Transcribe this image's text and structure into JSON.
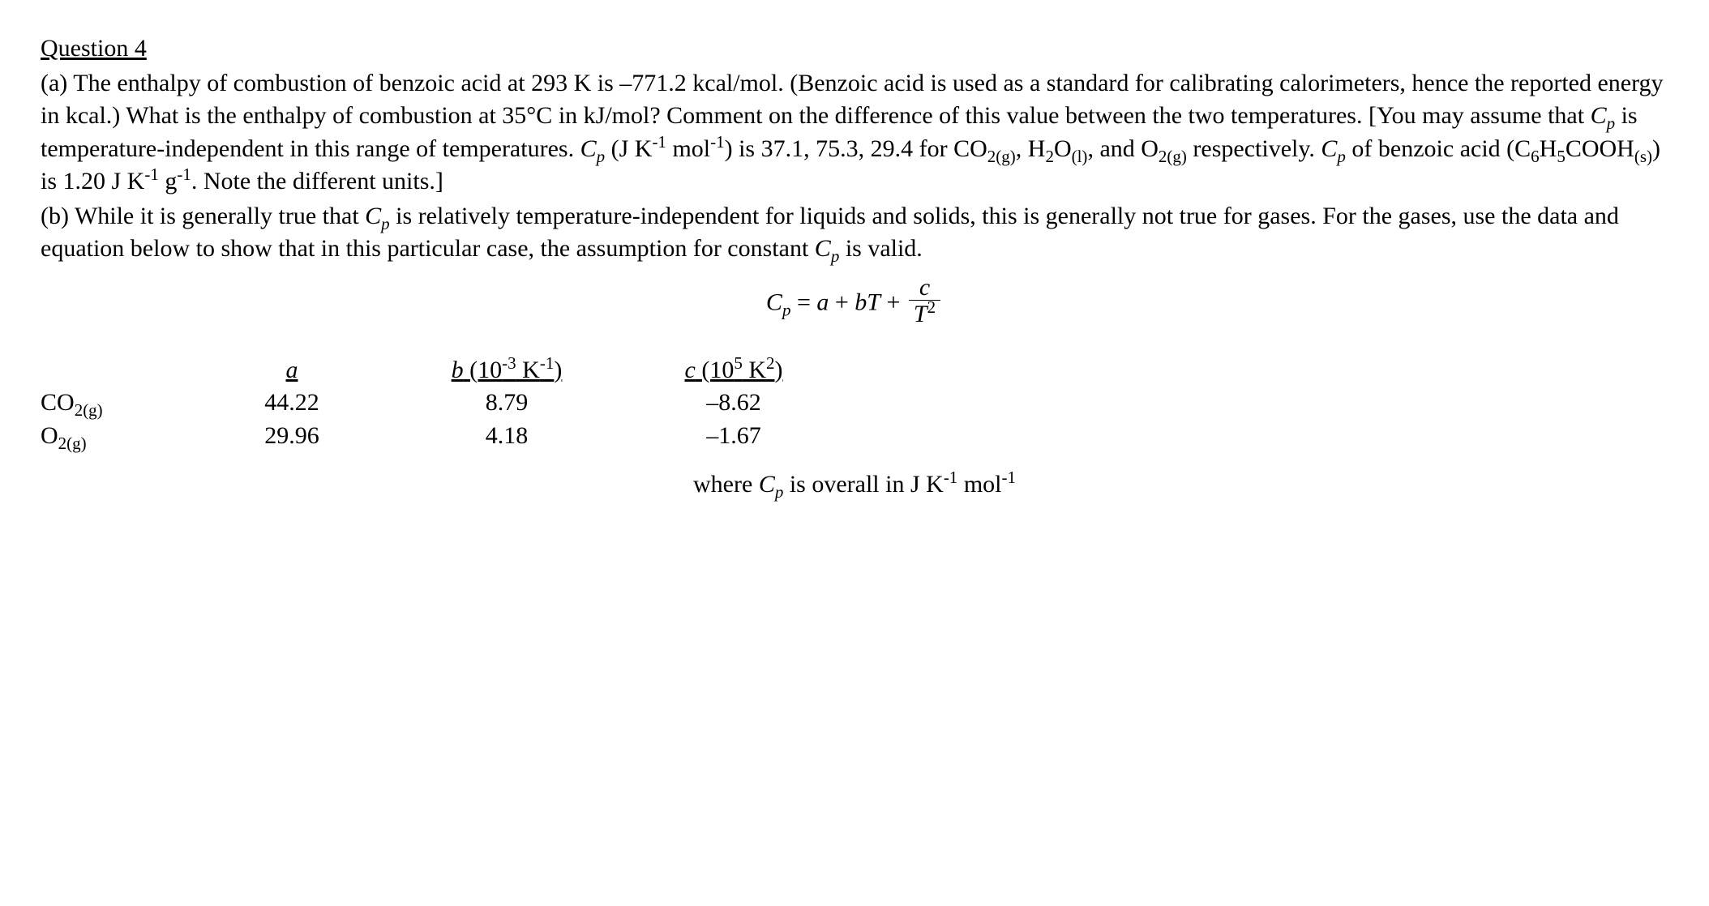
{
  "heading": "Question 4",
  "part_a": {
    "prefix": "(a) The enthalpy of combustion of benzoic acid at 293 K is ",
    "value1": "–771.2 kcal/mol",
    "after1": ". (Benzoic acid is used as a standard for calibrating calorimeters, hence the reported energy in kcal.) What is the enthalpy of combustion at 35°C in kJ/mol? Comment on the difference of this value between the two temperatures. [You may assume that ",
    "cp1": "C",
    "cp1_sub": "p",
    "after_cp1": " is temperature-independent in this range of temperatures. ",
    "cp2": "C",
    "cp2_sub": "p",
    "units_phrase": "  (J K",
    "units_sup1": "-1",
    "units_mid": " mol",
    "units_sup2": "-1",
    "units_end": ") is 37.1, 75.3, 29.4 for CO",
    "co2_sub": "2(g)",
    "sep1": ", H",
    "h2o_sub1": "2",
    "h2o_mid": "O",
    "h2o_sub2": "(l)",
    "sep2": ", and O",
    "o2_sub": "2(g)",
    "after_species": " respectively. ",
    "cp3": "C",
    "cp3_sub": "p",
    "benz_intro": " of benzoic acid (C",
    "benz_sub1": "6",
    "benz_mid1": "H",
    "benz_sub2": "5",
    "benz_mid2": "COOH",
    "benz_sub3": "(s)",
    "benz_after": ") is 1.20 J K",
    "benz_sup1": "-1",
    "benz_g": " g",
    "benz_sup2": "-1",
    "benz_close": ". Note the different units.]"
  },
  "part_b": {
    "prefix": "(b) While it is generally true that ",
    "cp": "C",
    "cp_sub": "p",
    "mid1": " is relatively temperature-independent for liquids and solids, this is generally not true for gases. For the gases, use the data and equation below to show that in this particular case, the assumption for constant ",
    "cp2": "C",
    "cp2_sub": "p",
    "end": " is valid."
  },
  "equation": {
    "lhs": "C",
    "lhs_sub": "p",
    "eq": " = ",
    "a": "a",
    "plus1": " + ",
    "b": "bT",
    "plus2": " + ",
    "frac_num": "c",
    "frac_den_base": "T",
    "frac_den_sup": "2"
  },
  "table": {
    "headers": {
      "a": "a",
      "b_pre": "b",
      "b_paren_open": " (10",
      "b_sup": "-3",
      "b_k": " K",
      "b_sup2": "-1",
      "b_close": ")",
      "c_pre": "c",
      "c_paren_open": " (10",
      "c_sup": "5",
      "c_k": " K",
      "c_sup2": "2",
      "c_close": ")"
    },
    "rows": [
      {
        "gas_base": "CO",
        "gas_sub": "2(g)",
        "a": "44.22",
        "b": "8.79",
        "c": "–8.62"
      },
      {
        "gas_base": "O",
        "gas_sub": "2(g)",
        "a": "29.96",
        "b": "4.18",
        "c": "–1.67"
      }
    ]
  },
  "footer": {
    "pre": "where ",
    "cp": "C",
    "cp_sub": "p",
    "mid": " is overall in J K",
    "sup1": "-1",
    "mol": " mol",
    "sup2": "-1"
  },
  "colors": {
    "text": "#000000",
    "background": "#ffffff"
  },
  "typography": {
    "font_family": "Times New Roman",
    "base_fontsize_pt": 22
  }
}
